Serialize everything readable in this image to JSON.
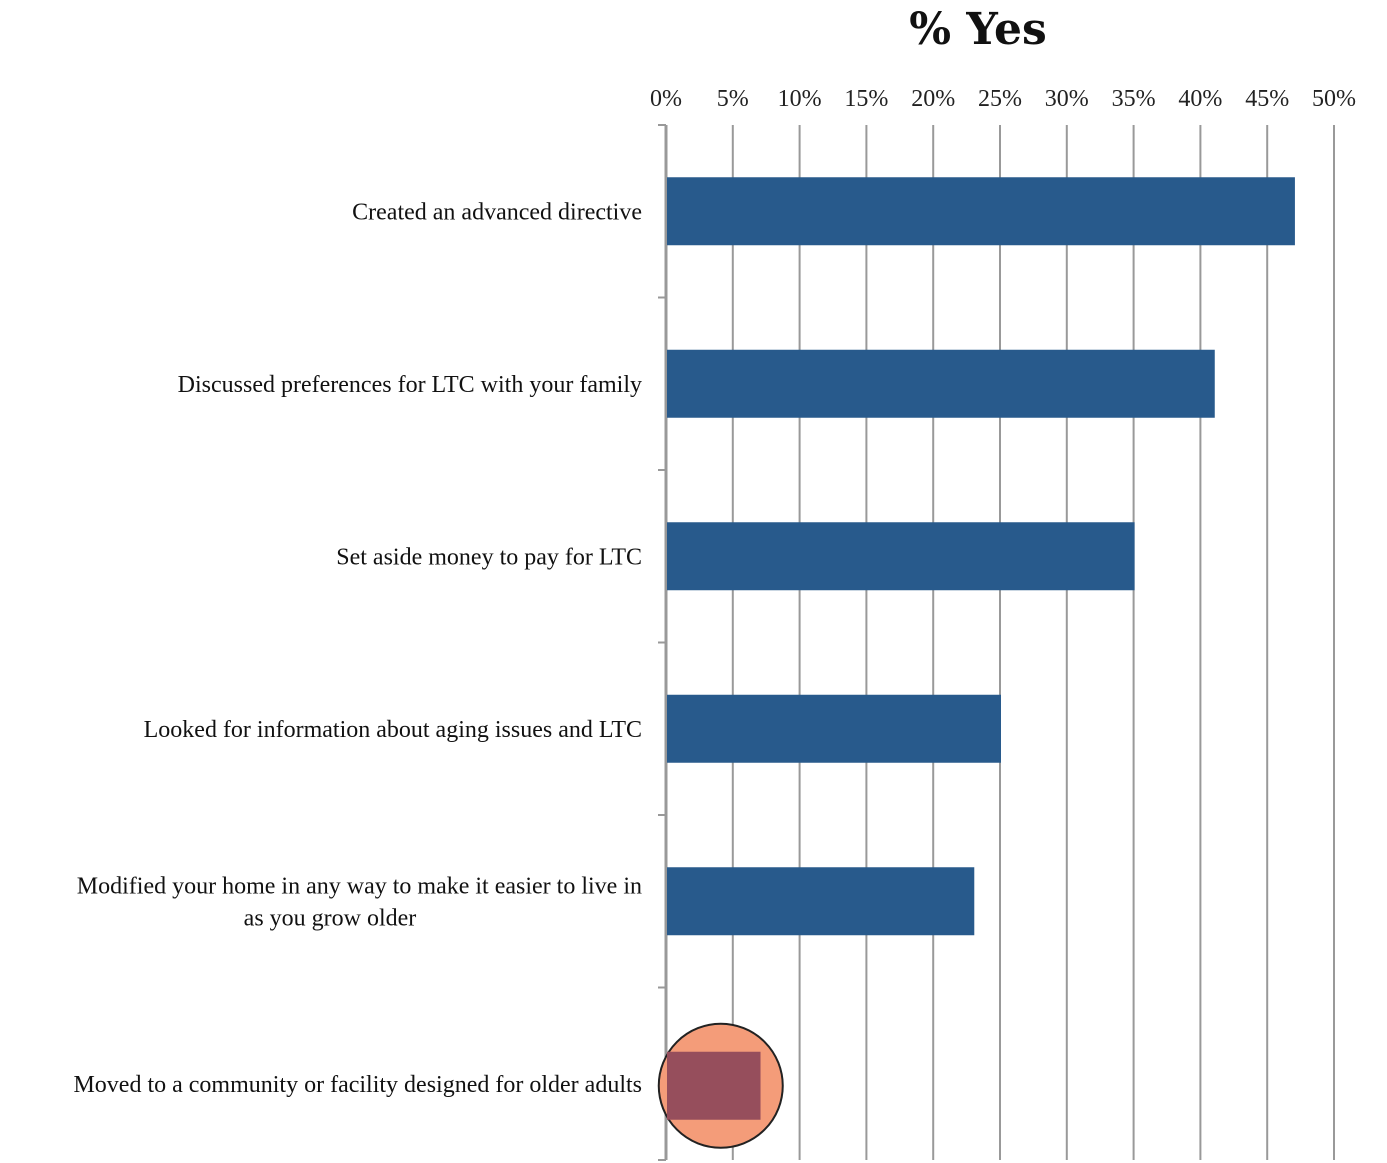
{
  "chart_data": {
    "type": "bar",
    "orientation": "horizontal",
    "title": "% Yes",
    "xlabel": "",
    "ylabel": "",
    "xlim": [
      0,
      0.5
    ],
    "x_ticks": [
      "0%",
      "5%",
      "10%",
      "15%",
      "20%",
      "25%",
      "30%",
      "35%",
      "40%",
      "45%",
      "50%"
    ],
    "x_axis_position": "top",
    "grid": true,
    "legend": "none",
    "categories": [
      [
        "Created an advanced directive"
      ],
      [
        "Discussed preferences for LTC with your family"
      ],
      [
        "Set aside money to pay for LTC"
      ],
      [
        "Looked for information about aging issues and LTC"
      ],
      [
        "Modified your home in any way to make it easier to live in",
        "as you grow older"
      ],
      [
        "Moved to a community or facility designed for older adults"
      ]
    ],
    "values": [
      0.47,
      0.41,
      0.35,
      0.25,
      0.23,
      0.07
    ],
    "colors": {
      "bar": "#285A8C",
      "highlight_bar": "#964E5C",
      "highlight_circle": "#F49C79",
      "grid": "#999999"
    },
    "highlighted_index": 5
  }
}
